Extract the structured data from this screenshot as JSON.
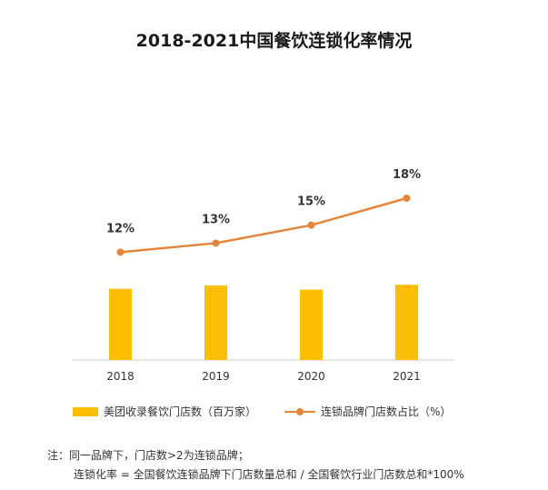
{
  "title": "2018-2021中国餐饮连锁化率情况",
  "legend": {
    "bar_label": "美团收录餐饮门店数（百万家）",
    "line_label": "连锁品牌门店数占比（%）"
  },
  "note": {
    "line1": "注：同一品牌下，门店数>2为连锁品牌；",
    "line2": "连锁化率 = 全国餐饮连锁品牌下门店数量总和 / 全国餐饮行业门店数总和*100%"
  },
  "colors": {
    "bar": "#FBBF00",
    "line": "#E5853A",
    "axis": "#cccccc"
  },
  "chart_data": {
    "type": "bar",
    "categories": [
      "2018",
      "2019",
      "2020",
      "2021"
    ],
    "series": [
      {
        "name": "美团收录餐饮门店数（百万家）",
        "type": "bar",
        "values": [
          8.7,
          9.1,
          8.6,
          9.2
        ]
      },
      {
        "name": "连锁品牌门店数占比（%）",
        "type": "line",
        "values": [
          12,
          13,
          15,
          18
        ],
        "labels": [
          "12%",
          "13%",
          "15%",
          "18%"
        ]
      }
    ],
    "bar_ylim": [
      0,
      22
    ],
    "line_ylim": [
      0,
      27
    ],
    "grid": false,
    "legend_position": "bottom"
  }
}
